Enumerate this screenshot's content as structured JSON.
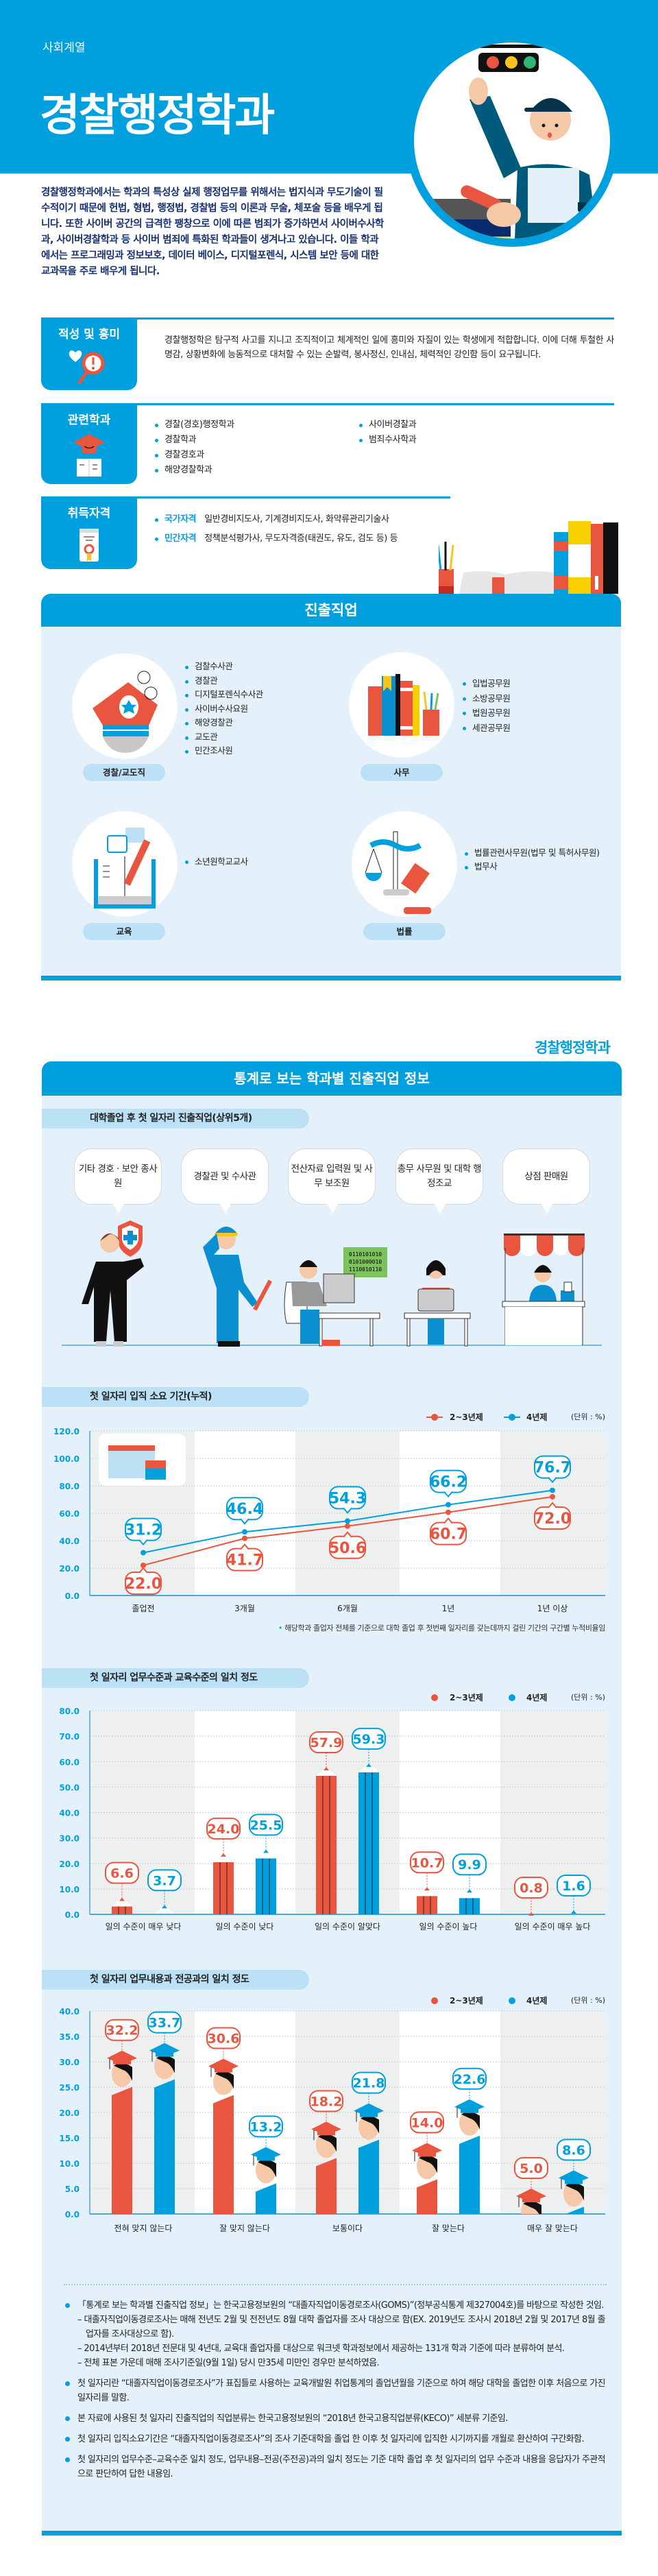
{
  "hero": {
    "category": "사회계열",
    "title": "경찰행정학과"
  },
  "intro": "경찰행정학과에서는 학과의 특성상 실제 행정업무를 위해서는 법지식과 무도기술이 필수적이기 때문에 헌법, 형법, 행정법, 경찰법 등의 이론과 무술, 체포술 등을 배우게 됩니다. 또한 사이버 공간의 급격한 팽창으로 이에 따른 범죄가 증가하면서 사이버수사학과, 사이버경찰학과 등 사이버 범죄에 특화된 학과들이 생겨나고 있습니다. 이들 학과에서는 프로그래밍과 정보보호, 데이터 베이스, 디지털포렌식, 시스템 보안 등에 대한 교과목을 주로 배우게 됩니다.",
  "aptitude": {
    "label": "적성 및 흥미",
    "text": "경찰행정학은 탐구적 사고를 지니고 조직적이고 체계적인 일에 흥미와 자질이 있는 학생에게 적합합니다. 이에 더해 투철한 사명감, 상황변화에 능동적으로 대처할 수 있는 순발력, 봉사정신, 인내심, 체력적인 강인함 등이 요구됩니다."
  },
  "related": {
    "label": "관련학과",
    "col1": [
      "경찰(경호)행정학과",
      "경찰학과",
      "경찰경호과",
      "해양경찰학과"
    ],
    "col2": [
      "사이버경찰과",
      "범죄수사학과"
    ]
  },
  "qualifications": {
    "label": "취득자격",
    "items": [
      {
        "type": "국가자격",
        "value": "일반경비지도사, 기계경비지도사, 화약류관리기술사"
      },
      {
        "type": "민간자격",
        "value": "정책분석평가사, 무도자격증(태권도, 유도, 검도 등) 등"
      }
    ]
  },
  "careers": {
    "title": "진출직업",
    "groups": [
      {
        "label": "경찰/교도직",
        "items": [
          "검찰수사관",
          "경찰관",
          "디지털포렌식수사관",
          "사이버수사요원",
          "해양경찰관",
          "교도관",
          "민간조사원"
        ]
      },
      {
        "label": "사무",
        "items": [
          "입법공무원",
          "소방공무원",
          "법원공무원",
          "세관공무원"
        ]
      },
      {
        "label": "교육",
        "items": [
          "소년원학교교사"
        ]
      },
      {
        "label": "법률",
        "items": [
          "법률관련사무원(법무 및 특허사무원)",
          "법무사"
        ]
      }
    ]
  },
  "footer_logo": "경찰행정학과",
  "stats": {
    "title": "통계로 보는 학과별 진출직업 정보",
    "top5_title": "대학졸업 후 첫 일자리 진출직업(상위5개)",
    "top5": [
      "기타 경호 · 보안 종사원",
      "경찰관 및 수사관",
      "전산자료 입력원 및 사무 보조원",
      "총무 사무원 및 대학 행정조교",
      "상점 판매원"
    ],
    "binary_board": [
      "0110101010",
      "0101000010",
      "1110010110"
    ],
    "unit": "(단위 : %)",
    "colors": {
      "series_2_3": "#E9553F",
      "series_4": "#00A0DF"
    }
  },
  "chart_data": [
    {
      "type": "line",
      "title": "첫 일자리 입직 소요 기간(누적)",
      "categories": [
        "졸업전",
        "3개월",
        "6개월",
        "1년",
        "1년 이상"
      ],
      "series": [
        {
          "name": "2~3년제",
          "values": [
            22.0,
            41.7,
            50.6,
            60.7,
            72.0
          ]
        },
        {
          "name": "4년제",
          "values": [
            31.2,
            46.4,
            54.3,
            66.2,
            76.7
          ]
        }
      ],
      "yticks": [
        "0.0",
        "20.0",
        "40.0",
        "60.0",
        "80.0",
        "100.0",
        "120.0"
      ],
      "ylim": [
        0,
        120
      ],
      "grid": true,
      "legend": "top-right",
      "note": "해당학과 졸업자 전체를 기준으로 대학 졸업 후 첫번째 일자리를 갖는데까지 걸린 기간의 구간별 누적비율임"
    },
    {
      "type": "bar",
      "title": "첫 일자리 업무수준과 교육수준의 일치 정도",
      "categories": [
        "일의 수준이 매우 낮다",
        "일의 수준이 낮다",
        "일의 수준이 알맞다",
        "일의 수준이 높다",
        "일의 수준이 매우 높다"
      ],
      "series": [
        {
          "name": "2~3년제",
          "values": [
            6.6,
            24.0,
            57.9,
            10.7,
            0.8
          ]
        },
        {
          "name": "4년제",
          "values": [
            3.7,
            25.5,
            59.3,
            9.9,
            1.6
          ]
        }
      ],
      "yticks": [
        "0.0",
        "10.0",
        "20.0",
        "30.0",
        "40.0",
        "50.0",
        "60.0",
        "70.0",
        "80.0"
      ],
      "ylim": [
        0,
        80
      ],
      "grid": true,
      "legend": "top-right"
    },
    {
      "type": "bar",
      "title": "첫 일자리 업무내용과 전공과의 일치 정도",
      "categories": [
        "전혀 맞지 않는다",
        "잘 맞지 않는다",
        "보통이다",
        "잘 맞는다",
        "매우 잘 맞는다"
      ],
      "series": [
        {
          "name": "2~3년제",
          "values": [
            32.2,
            30.6,
            18.2,
            14.0,
            5.0
          ]
        },
        {
          "name": "4년제",
          "values": [
            33.7,
            13.2,
            21.8,
            22.6,
            8.6
          ]
        }
      ],
      "yticks": [
        "0.0",
        "5.0",
        "10.0",
        "15.0",
        "20.0",
        "25.0",
        "30.0",
        "35.0",
        "40.0"
      ],
      "ylim": [
        0,
        40
      ],
      "grid": true,
      "legend": "top-right"
    }
  ],
  "notes": [
    {
      "text": "「통계로 보는 학과별 진출직업 정보」는 한국고용정보원의 “대졸자직업이동경로조사(GOMS)”(정부공식통계 제327004호)를 바탕으로 작성한 것임.",
      "subs": [
        "– 대졸자직업이동경로조사는 매해 전년도 2월 및 전전년도 8월 대학 졸업자를 조사 대상으로 함(EX. 2019년도 조사시 2018년 2월 및 2017년 8월 졸업자를 조사대상으로 함).",
        "– 2014년부터 2018년 전문대 및 4년대, 교육대 졸업자를 대상으로 워크넷 학과정보에서 제공하는 131개 학과 기준에 따라 분류하여 분석.",
        "– 전체 표본 가운데 매해 조사기준일(9월 1일) 당시 만35세 미만인 경우만 분석하였음."
      ]
    },
    {
      "text": "첫 일자리란 “대졸자직업이동경로조사”가 표집틀로 사용하는 교육개발원 취업통계의 졸업년월을 기준으로 하여 해당 대학을 졸업한 이후 처음으로 가진 일자리를 말함.",
      "subs": []
    },
    {
      "text": "본 자료에 사용된 첫 일자리 진출직업의 직업분류는 한국고용정보원의 “2018년 한국고용직업분류(KECO)” 세분류 기준임.",
      "subs": []
    },
    {
      "text": "첫 일자리 입직소요기간은 “대졸자직업이동경로조사”의 조사 기준대학을 졸업 한 이후 첫 일자리에 입직한 시기까지를 개월로 환산하여 구간화함.",
      "subs": []
    },
    {
      "text": "첫 일자리의 업무수준–교육수준 일치 정도, 업무내용–전공(주전공)과의 일치 정도는 기준 대학 졸업 후 첫 일자리의 업무 수준과 내용을 응답자가 주관적으로 판단하여 답한 내용임.",
      "subs": []
    }
  ]
}
